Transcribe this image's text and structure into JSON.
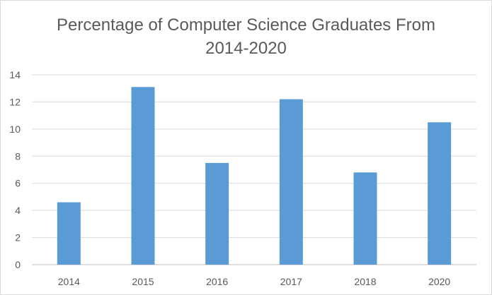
{
  "chart_data": {
    "type": "bar",
    "title_lines": [
      "Percentage of Computer Science Graduates From",
      "2014-2020"
    ],
    "categories": [
      "2014",
      "2015",
      "2016",
      "2017",
      "2018",
      "2020"
    ],
    "values": [
      4.6,
      13.1,
      7.5,
      12.2,
      6.8,
      10.5
    ],
    "xlabel": "",
    "ylabel": "",
    "ylim": [
      0,
      14
    ],
    "yticks": [
      "0",
      "2",
      "4",
      "6",
      "8",
      "10",
      "12",
      "14"
    ],
    "grid": true,
    "legend": "none",
    "bar_color": "#5b9bd5",
    "grid_color": "#d9d9d9",
    "text_color": "#595959"
  }
}
